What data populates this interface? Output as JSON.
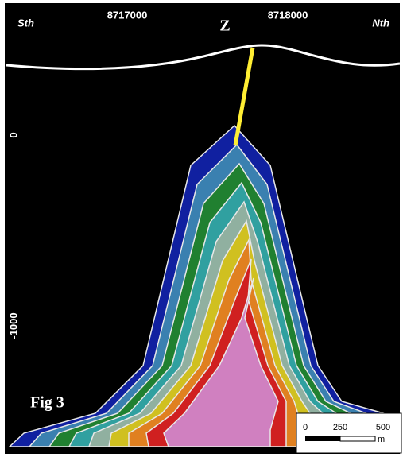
{
  "header": {
    "left": "Sth",
    "tick_left": "8717000",
    "well": "Z",
    "tick_right": "8718000",
    "right": "Nth"
  },
  "depth_labels": [
    "0",
    "-1000"
  ],
  "figure_label": "Fig 3",
  "scale_bar": {
    "labels": [
      "0",
      "250",
      "500"
    ],
    "unit": "m"
  }
}
